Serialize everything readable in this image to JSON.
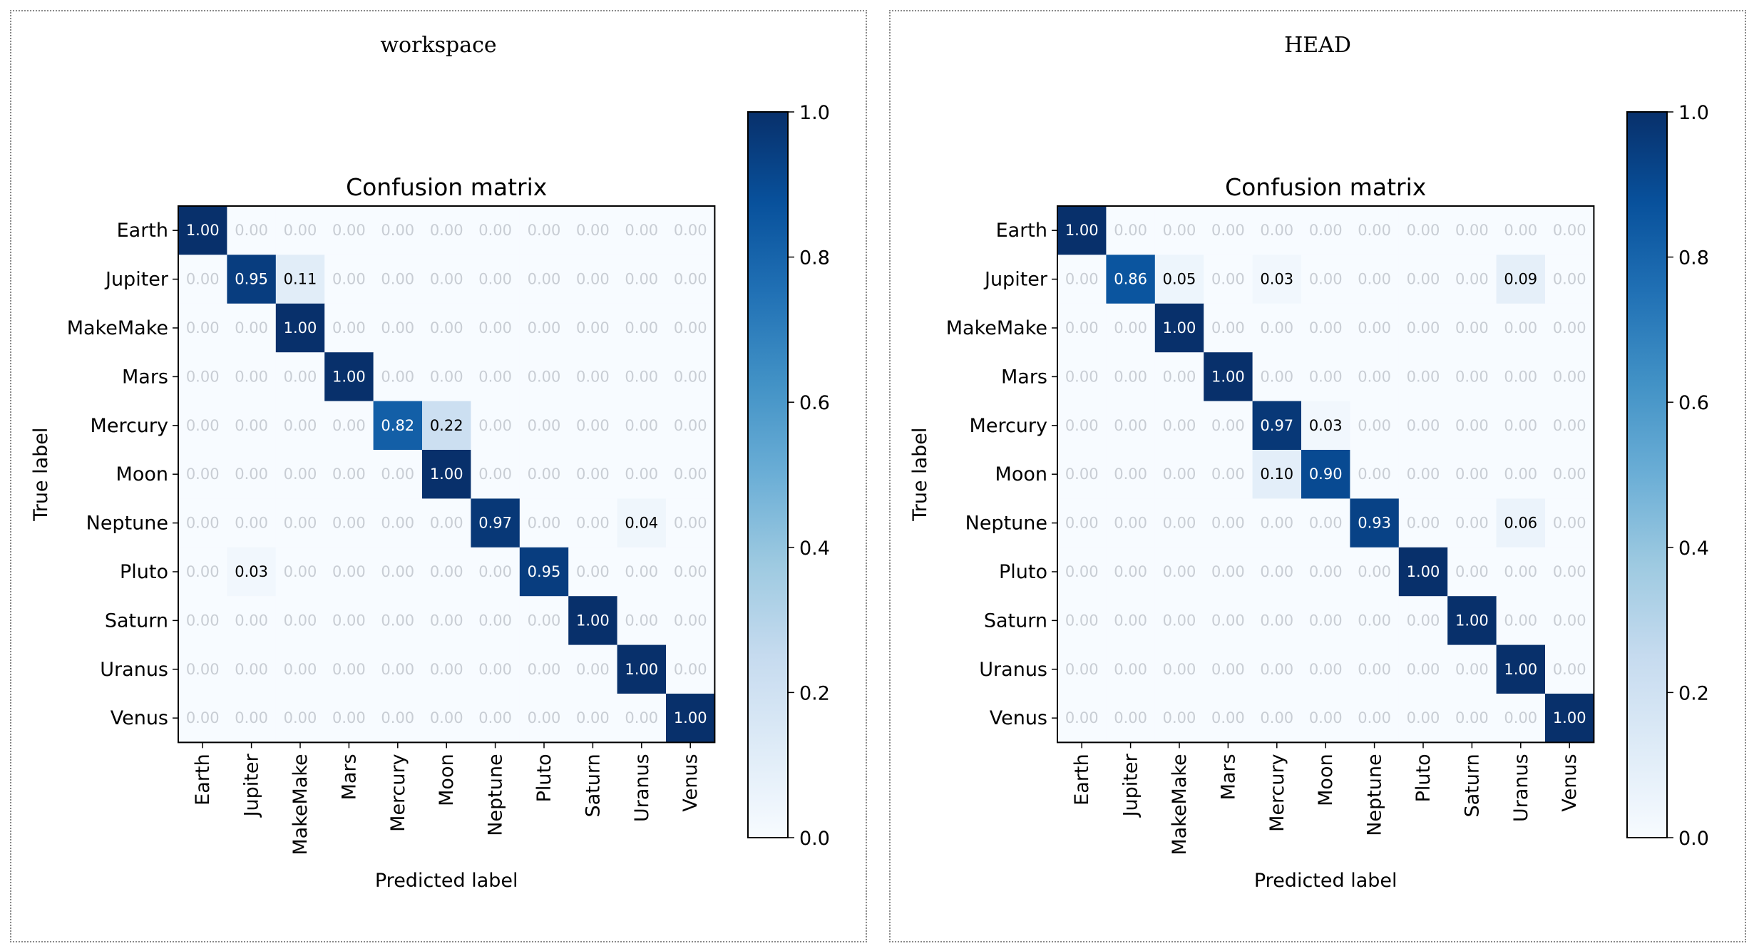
{
  "panels": [
    {
      "id": "left",
      "title": "workspace"
    },
    {
      "id": "right",
      "title": "HEAD"
    }
  ],
  "chart_data": [
    {
      "type": "heatmap",
      "panel": "workspace",
      "title": "Confusion matrix",
      "xlabel": "Predicted label",
      "ylabel": "True label",
      "x_categories": [
        "Earth",
        "Jupiter",
        "MakeMake",
        "Mars",
        "Mercury",
        "Moon",
        "Neptune",
        "Pluto",
        "Saturn",
        "Uranus",
        "Venus"
      ],
      "y_categories": [
        "Earth",
        "Jupiter",
        "MakeMake",
        "Mars",
        "Mercury",
        "Moon",
        "Neptune",
        "Pluto",
        "Saturn",
        "Uranus",
        "Venus"
      ],
      "values": [
        [
          1.0,
          0.0,
          0.0,
          0.0,
          0.0,
          0.0,
          0.0,
          0.0,
          0.0,
          0.0,
          0.0
        ],
        [
          0.0,
          0.95,
          0.11,
          0.0,
          0.0,
          0.0,
          0.0,
          0.0,
          0.0,
          0.0,
          0.0
        ],
        [
          0.0,
          0.0,
          1.0,
          0.0,
          0.0,
          0.0,
          0.0,
          0.0,
          0.0,
          0.0,
          0.0
        ],
        [
          0.0,
          0.0,
          0.0,
          1.0,
          0.0,
          0.0,
          0.0,
          0.0,
          0.0,
          0.0,
          0.0
        ],
        [
          0.0,
          0.0,
          0.0,
          0.0,
          0.82,
          0.22,
          0.0,
          0.0,
          0.0,
          0.0,
          0.0
        ],
        [
          0.0,
          0.0,
          0.0,
          0.0,
          0.0,
          1.0,
          0.0,
          0.0,
          0.0,
          0.0,
          0.0
        ],
        [
          0.0,
          0.0,
          0.0,
          0.0,
          0.0,
          0.0,
          0.97,
          0.0,
          0.0,
          0.04,
          0.0
        ],
        [
          0.0,
          0.03,
          0.0,
          0.0,
          0.0,
          0.0,
          0.0,
          0.95,
          0.0,
          0.0,
          0.0
        ],
        [
          0.0,
          0.0,
          0.0,
          0.0,
          0.0,
          0.0,
          0.0,
          0.0,
          1.0,
          0.0,
          0.0
        ],
        [
          0.0,
          0.0,
          0.0,
          0.0,
          0.0,
          0.0,
          0.0,
          0.0,
          0.0,
          1.0,
          0.0
        ],
        [
          0.0,
          0.0,
          0.0,
          0.0,
          0.0,
          0.0,
          0.0,
          0.0,
          0.0,
          0.0,
          1.0
        ]
      ],
      "colorbar": {
        "range": [
          0.0,
          1.0
        ],
        "ticks": [
          "0.0",
          "0.2",
          "0.4",
          "0.6",
          "0.8",
          "1.0"
        ]
      },
      "colormap": "Blues",
      "colors": {
        "low": "#f7fbff",
        "high": "#08306b",
        "text_dark": "#000000",
        "text_light": "#ffffff",
        "text_zero": "#c8cdd4"
      }
    },
    {
      "type": "heatmap",
      "panel": "HEAD",
      "title": "Confusion matrix",
      "xlabel": "Predicted label",
      "ylabel": "True label",
      "x_categories": [
        "Earth",
        "Jupiter",
        "MakeMake",
        "Mars",
        "Mercury",
        "Moon",
        "Neptune",
        "Pluto",
        "Saturn",
        "Uranus",
        "Venus"
      ],
      "y_categories": [
        "Earth",
        "Jupiter",
        "MakeMake",
        "Mars",
        "Mercury",
        "Moon",
        "Neptune",
        "Pluto",
        "Saturn",
        "Uranus",
        "Venus"
      ],
      "values": [
        [
          1.0,
          0.0,
          0.0,
          0.0,
          0.0,
          0.0,
          0.0,
          0.0,
          0.0,
          0.0,
          0.0
        ],
        [
          0.0,
          0.86,
          0.05,
          0.0,
          0.03,
          0.0,
          0.0,
          0.0,
          0.0,
          0.09,
          0.0
        ],
        [
          0.0,
          0.0,
          1.0,
          0.0,
          0.0,
          0.0,
          0.0,
          0.0,
          0.0,
          0.0,
          0.0
        ],
        [
          0.0,
          0.0,
          0.0,
          1.0,
          0.0,
          0.0,
          0.0,
          0.0,
          0.0,
          0.0,
          0.0
        ],
        [
          0.0,
          0.0,
          0.0,
          0.0,
          0.97,
          0.03,
          0.0,
          0.0,
          0.0,
          0.0,
          0.0
        ],
        [
          0.0,
          0.0,
          0.0,
          0.0,
          0.1,
          0.9,
          0.0,
          0.0,
          0.0,
          0.0,
          0.0
        ],
        [
          0.0,
          0.0,
          0.0,
          0.0,
          0.0,
          0.0,
          0.93,
          0.0,
          0.0,
          0.06,
          0.0
        ],
        [
          0.0,
          0.0,
          0.0,
          0.0,
          0.0,
          0.0,
          0.0,
          1.0,
          0.0,
          0.0,
          0.0
        ],
        [
          0.0,
          0.0,
          0.0,
          0.0,
          0.0,
          0.0,
          0.0,
          0.0,
          1.0,
          0.0,
          0.0
        ],
        [
          0.0,
          0.0,
          0.0,
          0.0,
          0.0,
          0.0,
          0.0,
          0.0,
          0.0,
          1.0,
          0.0
        ],
        [
          0.0,
          0.0,
          0.0,
          0.0,
          0.0,
          0.0,
          0.0,
          0.0,
          0.0,
          0.0,
          1.0
        ]
      ],
      "colorbar": {
        "range": [
          0.0,
          1.0
        ],
        "ticks": [
          "0.0",
          "0.2",
          "0.4",
          "0.6",
          "0.8",
          "1.0"
        ]
      },
      "colormap": "Blues",
      "colors": {
        "low": "#f7fbff",
        "high": "#08306b",
        "text_dark": "#000000",
        "text_light": "#ffffff",
        "text_zero": "#c8cdd4"
      }
    }
  ]
}
